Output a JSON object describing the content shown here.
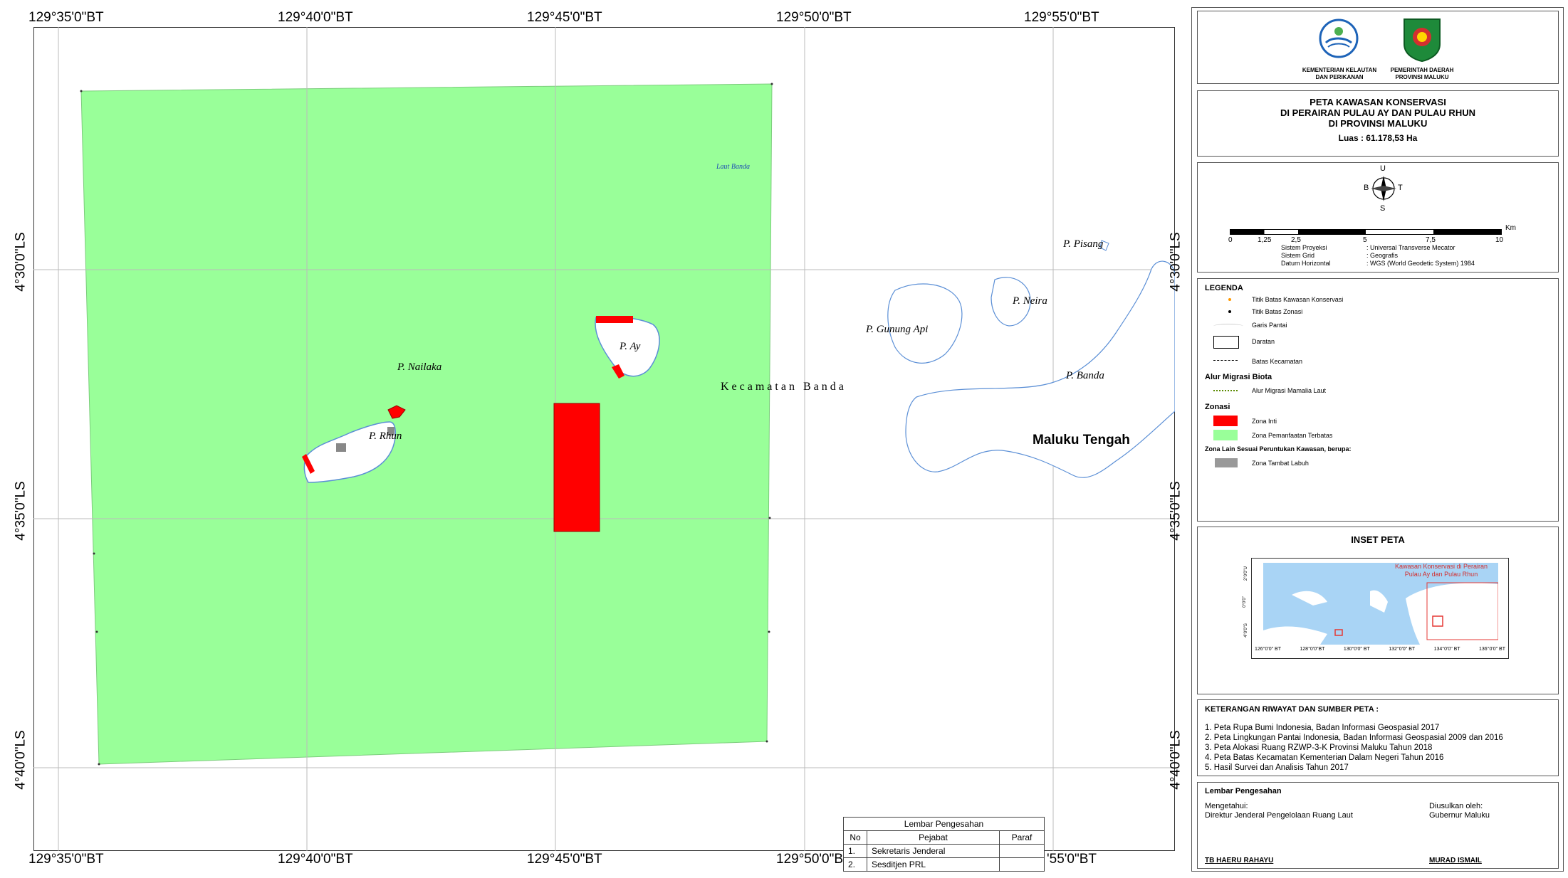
{
  "grid": {
    "top_ticks": [
      "129°35'0\"BT",
      "129°40'0\"BT",
      "129°45'0\"BT",
      "129°50'0\"BT",
      "129°55'0\"BT"
    ],
    "bottom_ticks": [
      "129°35'0\"BT",
      "129°40'0\"BT",
      "129°45'0\"BT",
      "129°50'0\"B",
      "'55'0\"BT"
    ],
    "left_ticks": [
      "4°30'0\"LS",
      "4°35'0\"LS",
      "4°40'0\"LS"
    ],
    "right_ticks": [
      "4°30'0\"LS",
      "4°35'0\"LS",
      "4°40'0\"LS"
    ]
  },
  "map": {
    "sea_label": "Laut Banda",
    "district_label": "K e c a m a t a n   B a n d a",
    "regency_label": "Maluku Tengah",
    "islands": {
      "nailaka": "P. Nailaka",
      "rhun": "P. Rhun",
      "ay": "P. Ay",
      "gunung_api": "P. Gunung Api",
      "neira": "P. Neira",
      "pisang": "P. Pisang",
      "banda": "P. Banda"
    },
    "colors": {
      "zone_pemanfaatan": "#99ff99",
      "zone_inti": "#ff0000",
      "coast": "#5b8fd6"
    }
  },
  "header": {
    "logo1_caption": "KEMENTERIAN KELAUTAN DAN PERIKANAN",
    "logo2_caption": "PEMERINTAH DAERAH PROVINSI MALUKU"
  },
  "title": {
    "line1": "PETA KAWASAN KONSERVASI",
    "line2": "DI PERAIRAN PULAU AY DAN PULAU RHUN",
    "line3": "DI PROVINSI MALUKU",
    "area": "Luas : 61.178,53 Ha"
  },
  "compass": {
    "n": "U",
    "s": "S",
    "w": "B",
    "e": "T"
  },
  "scale": {
    "labels": [
      "0",
      "1,25",
      "2,5",
      "5",
      "7,5",
      "10"
    ],
    "unit": "Km",
    "info": [
      {
        "k": "Sistem Proyeksi",
        "v": ": Universal Transverse Mecator"
      },
      {
        "k": "Sistem Grid",
        "v": ": Geografis"
      },
      {
        "k": "Datum Horizontal",
        "v": ": WGS (World Geodetic System) 1984"
      }
    ]
  },
  "legend": {
    "title": "LEGENDA",
    "items": {
      "titik_kawasan": "Titik Batas Kawasan Konservasi",
      "titik_zonasi": "Titik Batas Zonasi",
      "garis_pantai": "Garis Pantai",
      "daratan": "Daratan",
      "batas_kec": "Batas Kecamatan"
    },
    "alur_title": "Alur Migrasi Biota",
    "alur_item": "Alur Migrasi Mamalia Laut",
    "zonasi_title": "Zonasi",
    "zona_inti": "Zona Inti",
    "zona_pemanfaatan": "Zona Pemanfaatan Terbatas",
    "zona_lain_title": "Zona Lain Sesuai Peruntukan Kawasan, berupa:",
    "zona_tambat": "Zona Tambat Labuh"
  },
  "inset": {
    "title": "INSET PETA",
    "caption_line1": "Kawasan Konservasi di Perairan",
    "caption_line2": "Pulau Ay dan Pulau Rhun",
    "x_ticks": [
      "126°0'0\" BT",
      "128°0'0\"BT",
      "130°0'0\" BT",
      "132°0'0\" BT",
      "134°0'0\" BT",
      "136°0'0\" BT"
    ],
    "y_ticks": [
      "2°0'0\"U",
      "0°0'0\"",
      "4°0'0\"S"
    ]
  },
  "sources": {
    "title": "KETERANGAN RIWAYAT DAN SUMBER PETA :",
    "items": [
      "1. Peta Rupa Bumi Indonesia, Badan Informasi Geospasial 2017",
      "2. Peta Lingkungan Pantai Indonesia, Badan Informasi Geospasial 2009 dan 2016",
      "3. Peta Alokasi Ruang RZWP-3-K Provinsi Maluku Tahun 2018",
      "4. Peta Batas Kecamatan Kementerian Dalam Negeri Tahun 2016",
      "5. Hasil Survei dan Analisis Tahun 2017"
    ]
  },
  "approval": {
    "title": "Lembar Pengesahan",
    "left_label1": "Mengetahui:",
    "left_label2": "Direktur Jenderal Pengelolaan Ruang Laut",
    "right_label1": "Diusulkan oleh:",
    "right_label2": "Gubernur Maluku",
    "left_name": "TB HAERU RAHAYU",
    "right_name": "MURAD ISMAIL"
  },
  "sig_table": {
    "title": "Lembar Pengesahan",
    "headers": [
      "No",
      "Pejabat",
      "Paraf"
    ],
    "rows": [
      {
        "no": "1.",
        "name": "Sekretaris Jenderal",
        "paraf": ""
      },
      {
        "no": "2.",
        "name": "Sesditjen PRL",
        "paraf": ""
      }
    ]
  }
}
